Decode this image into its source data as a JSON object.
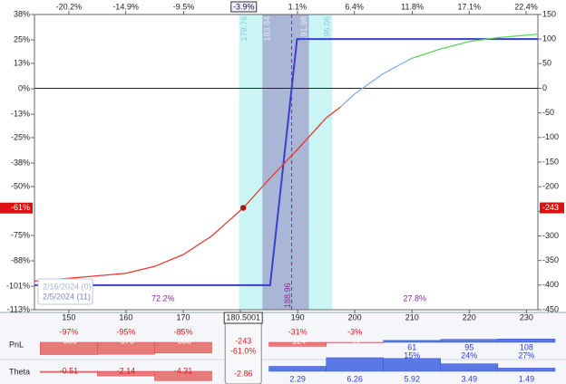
{
  "chart_data": {
    "type": "line",
    "xlim": [
      144,
      232
    ],
    "xticks": [
      150,
      160,
      170,
      180,
      190,
      200,
      210,
      220,
      230
    ],
    "x2lim": [
      -23.4,
      23.5
    ],
    "x2ticks": [
      {
        "value": -20.2,
        "label": "-20.2%"
      },
      {
        "value": -14.9,
        "label": "-14.9%"
      },
      {
        "value": -9.5,
        "label": "-9.5%"
      },
      {
        "value": 1.1,
        "label": "1.1%"
      },
      {
        "value": 6.4,
        "label": "6.4%"
      },
      {
        "value": 11.8,
        "label": "11.8%"
      },
      {
        "value": 17.1,
        "label": "17.1%"
      },
      {
        "value": 22.4,
        "label": "22.4%"
      }
    ],
    "ylim": [
      -113,
      38
    ],
    "yticks": [
      {
        "value": 38,
        "label": "38%"
      },
      {
        "value": 25,
        "label": "25%"
      },
      {
        "value": 13,
        "label": "13%"
      },
      {
        "value": 0,
        "label": "0%"
      },
      {
        "value": -13,
        "label": "-13%"
      },
      {
        "value": -25,
        "label": "-25%"
      },
      {
        "value": -38,
        "label": "-38%"
      },
      {
        "value": -50,
        "label": "-50%"
      },
      {
        "value": -75,
        "label": "-75%"
      },
      {
        "value": -88,
        "label": "-88%"
      },
      {
        "value": -101,
        "label": "-101%"
      },
      {
        "value": -113,
        "label": "-113%"
      }
    ],
    "y2lim": [
      -450,
      150
    ],
    "y2ticks": [
      150,
      100,
      50,
      0,
      -50,
      -100,
      -150,
      -200,
      -250,
      -300,
      -350,
      -400,
      -450
    ],
    "zero_line": true,
    "cursor": {
      "x": 180.5001,
      "x2": {
        "value": -3.9,
        "label": "-3.9%"
      },
      "y": {
        "value": -61,
        "label": "-61%"
      },
      "y2": -243
    },
    "bands": [
      {
        "range": [
          179.76,
          196.06
        ],
        "color": "#cbf5f5",
        "label_color": "#86cfd6"
      },
      {
        "range": [
          183.84,
          191.98
        ],
        "color": "#a9b6d6",
        "label_color": "#e6ecf8"
      }
    ],
    "price": 188.96,
    "probabilities": [
      {
        "value": 72.2,
        "label": "72.2%"
      },
      {
        "value": 27.8,
        "label": "27.8%"
      }
    ],
    "series": [
      {
        "name": "2/16/2024 (0)",
        "color": "#3a3fcf",
        "axis": "y2",
        "x": [
          144,
          185.2,
          189.9,
          232
        ],
        "values": [
          -400,
          -400,
          100,
          100
        ]
      },
      {
        "name": "2/5/2024 (11)",
        "colors": [
          "#e8392f",
          "#86aee3",
          "#5cd65c"
        ],
        "color_starts": [
          0,
          10,
          13
        ],
        "axis": "y2",
        "x": [
          144,
          150,
          160,
          165,
          170,
          175,
          180.5,
          185,
          190,
          195,
          197.5,
          200,
          205,
          210,
          215,
          220,
          225,
          232
        ],
        "values": [
          -392,
          -386,
          -376,
          -362,
          -338,
          -300,
          -243,
          -185,
          -124,
          -60,
          -38,
          -11,
          30,
          61,
          80,
          95,
          103,
          110
        ]
      }
    ],
    "panel_x": [
      150,
      160,
      170,
      190,
      200,
      210,
      220,
      230
    ],
    "panels": [
      {
        "title": "PnL",
        "values": [
          -386,
          -376,
          -338,
          -124,
          -11,
          61,
          95,
          108
        ],
        "percent_labels": [
          "-97%",
          "-95%",
          "-85%",
          "-31%",
          "-3%",
          "15%",
          "24%",
          "27%"
        ],
        "cursor_value": -243,
        "cursor_label": "-61.0%"
      },
      {
        "title": "Theta",
        "values": [
          -0.51,
          -2.14,
          -4.31,
          2.29,
          6.26,
          5.92,
          3.49,
          1.49
        ],
        "cursor_value": -2.86
      }
    ]
  }
}
